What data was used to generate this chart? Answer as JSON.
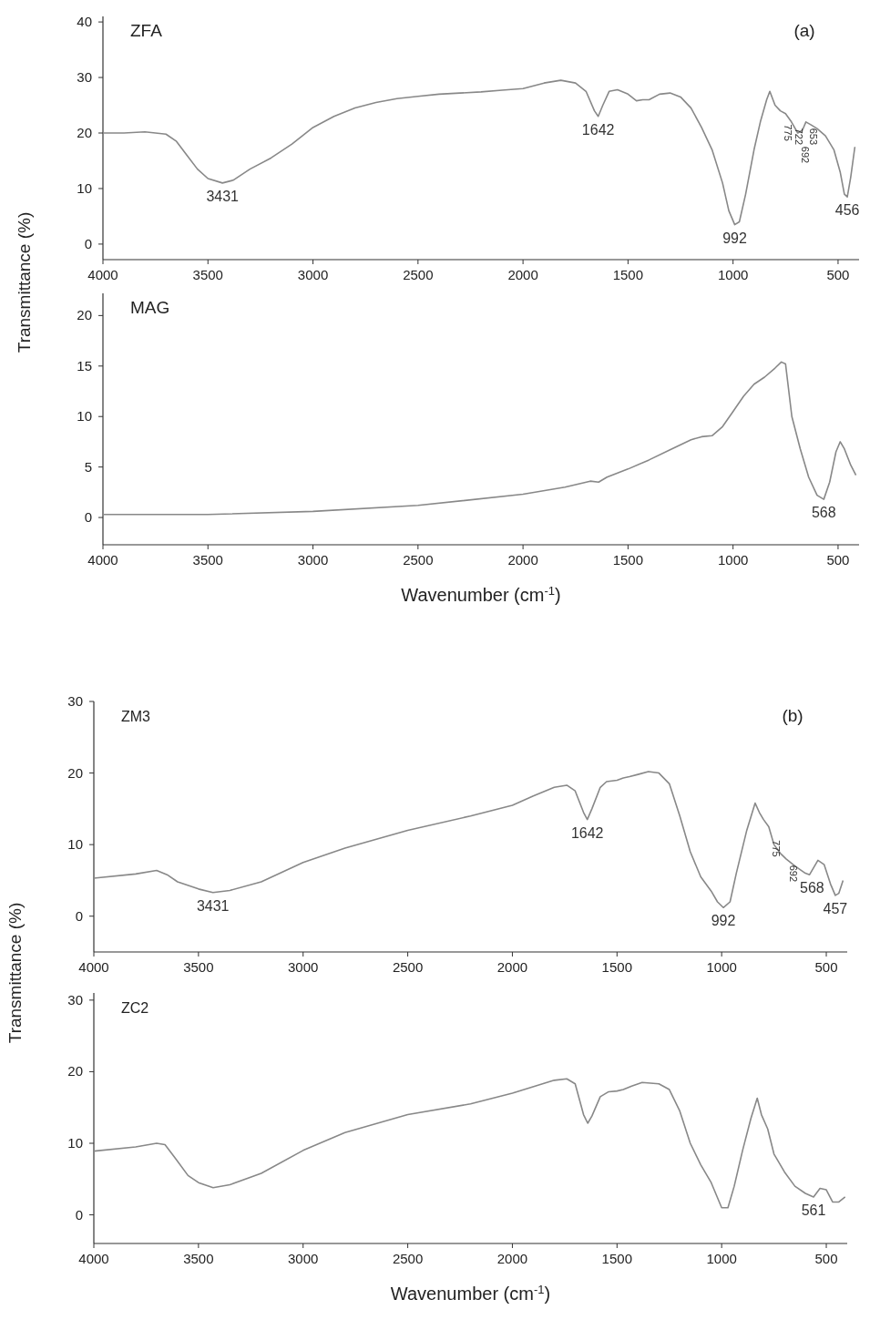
{
  "chart_data": [
    {
      "type": "line",
      "ylabel": "Transmittance (%)",
      "xlim": [
        4000,
        400
      ],
      "ylim": [
        -2.8,
        41
      ],
      "xticks": [
        4000,
        3500,
        3000,
        2500,
        2000,
        1500,
        1000,
        500
      ],
      "yticks": [
        0,
        10,
        20,
        30,
        40
      ],
      "grid": false,
      "annotations": [
        "ZFA",
        "(a)",
        {
          "text": "3431",
          "x": 3431,
          "y": 11
        },
        {
          "text": "1642",
          "x": 1642,
          "y": 23
        },
        {
          "text": "992",
          "x": 992,
          "y": 3.5
        },
        {
          "text": "775",
          "x": 775,
          "y": 24
        },
        {
          "text": "722",
          "x": 722,
          "y": 22
        },
        {
          "text": "692",
          "x": 692,
          "y": 20
        },
        {
          "text": "653",
          "x": 653,
          "y": 22
        },
        {
          "text": "456",
          "x": 456,
          "y": 8.5
        }
      ],
      "series": [
        {
          "color": "#888888",
          "x": [
            4000,
            3900,
            3800,
            3700,
            3650,
            3600,
            3550,
            3500,
            3431,
            3380,
            3300,
            3200,
            3100,
            3000,
            2900,
            2800,
            2700,
            2600,
            2500,
            2400,
            2300,
            2200,
            2100,
            2000,
            1900,
            1820,
            1750,
            1700,
            1660,
            1642,
            1620,
            1590,
            1550,
            1500,
            1460,
            1430,
            1400,
            1350,
            1300,
            1250,
            1200,
            1150,
            1100,
            1050,
            1020,
            992,
            970,
            940,
            900,
            870,
            840,
            825,
            800,
            775,
            750,
            722,
            692,
            670,
            653,
            630,
            600,
            560,
            520,
            490,
            470,
            456,
            440,
            420
          ],
          "values": [
            20,
            20,
            20.2,
            19.8,
            18.5,
            16,
            13.5,
            11.8,
            11,
            11.5,
            13.5,
            15.5,
            18,
            21,
            23,
            24.5,
            25.5,
            26.2,
            26.6,
            27,
            27.2,
            27.4,
            27.7,
            28,
            29,
            29.5,
            29,
            27.5,
            24,
            23,
            25,
            27.5,
            27.8,
            27,
            25.8,
            26,
            26,
            27,
            27.2,
            26.5,
            24.5,
            21,
            17,
            11,
            6,
            3.5,
            4,
            9,
            17,
            22,
            26,
            27.5,
            25,
            24,
            23.5,
            22,
            20,
            20.5,
            22,
            21.5,
            20.8,
            19.5,
            17,
            13,
            9,
            8.5,
            12,
            17.5
          ]
        }
      ]
    },
    {
      "type": "line",
      "xlabel": "Wavenumber (cm$^{-1}$)",
      "xlim": [
        4000,
        400
      ],
      "ylim": [
        -2.7,
        22.2
      ],
      "xticks": [
        4000,
        3500,
        3000,
        2500,
        2000,
        1500,
        1000,
        500
      ],
      "yticks": [
        0,
        5,
        10,
        15,
        20
      ],
      "grid": false,
      "annotations": [
        "MAG",
        {
          "text": "568",
          "x": 568,
          "y": 1.8
        }
      ],
      "series": [
        {
          "color": "#888888",
          "x": [
            4000,
            3500,
            3000,
            2500,
            2000,
            1800,
            1680,
            1640,
            1600,
            1500,
            1400,
            1300,
            1200,
            1150,
            1100,
            1050,
            1000,
            950,
            900,
            850,
            800,
            770,
            750,
            720,
            680,
            640,
            600,
            568,
            540,
            510,
            490,
            470,
            440,
            415
          ],
          "values": [
            0.3,
            0.3,
            0.6,
            1.2,
            2.3,
            3,
            3.6,
            3.5,
            4,
            4.8,
            5.7,
            6.7,
            7.7,
            8,
            8.1,
            9,
            10.5,
            12,
            13.2,
            13.9,
            14.8,
            15.4,
            15.2,
            10,
            6.8,
            4,
            2.2,
            1.8,
            3.5,
            6.5,
            7.5,
            6.8,
            5.2,
            4.2
          ]
        }
      ]
    },
    {
      "type": "line",
      "ylabel": "Transmittance (%)",
      "xlim": [
        4000,
        400
      ],
      "ylim": [
        -5,
        30
      ],
      "xticks": [
        4000,
        3500,
        3000,
        2500,
        2000,
        1500,
        1000,
        500
      ],
      "yticks": [
        0,
        10,
        20,
        30
      ],
      "grid": false,
      "annotations": [
        "ZM3",
        "(b)",
        {
          "text": "3431",
          "x": 3431,
          "y": 3.3
        },
        {
          "text": "1642",
          "x": 1642,
          "y": 13.5
        },
        {
          "text": "992",
          "x": 992,
          "y": 1.2
        },
        {
          "text": "775",
          "x": 775,
          "y": 12.5
        },
        {
          "text": "692",
          "x": 692,
          "y": 8
        },
        {
          "text": "568",
          "x": 568,
          "y": 5.8
        },
        {
          "text": "457",
          "x": 457,
          "y": 2.9
        }
      ],
      "series": [
        {
          "color": "#888888",
          "x": [
            4000,
            3800,
            3700,
            3650,
            3600,
            3500,
            3431,
            3350,
            3200,
            3000,
            2800,
            2500,
            2200,
            2000,
            1900,
            1800,
            1740,
            1700,
            1660,
            1642,
            1620,
            1580,
            1550,
            1500,
            1470,
            1440,
            1400,
            1350,
            1300,
            1250,
            1200,
            1150,
            1100,
            1050,
            1020,
            992,
            960,
            930,
            880,
            840,
            820,
            800,
            775,
            750,
            720,
            692,
            650,
            600,
            580,
            540,
            510,
            480,
            457,
            440,
            420
          ],
          "values": [
            5.3,
            5.9,
            6.4,
            5.8,
            4.8,
            3.8,
            3.3,
            3.6,
            4.8,
            7.5,
            9.5,
            12,
            14,
            15.5,
            16.8,
            18,
            18.3,
            17.5,
            14.5,
            13.5,
            15,
            18,
            18.8,
            19,
            19.3,
            19.5,
            19.8,
            20.2,
            20,
            18.5,
            14,
            9,
            5.5,
            3.5,
            2,
            1.2,
            2,
            6,
            12,
            15.8,
            14.5,
            13.5,
            12.5,
            10,
            8.8,
            8,
            7,
            6,
            5.8,
            7.8,
            7.2,
            4.5,
            2.9,
            3.2,
            5
          ]
        }
      ]
    },
    {
      "type": "line",
      "xlabel": "Wavenumber (cm$^{-1}$)",
      "xlim": [
        4000,
        400
      ],
      "ylim": [
        -4,
        31
      ],
      "xticks": [
        4000,
        3500,
        3000,
        2500,
        2000,
        1500,
        1000,
        500
      ],
      "yticks": [
        0,
        10,
        20,
        30
      ],
      "grid": false,
      "annotations": [
        "ZC2",
        {
          "text": "561",
          "x": 561,
          "y": 2.5
        }
      ],
      "series": [
        {
          "color": "#888888",
          "x": [
            4000,
            3800,
            3700,
            3660,
            3600,
            3550,
            3500,
            3430,
            3350,
            3200,
            3000,
            2800,
            2500,
            2200,
            2000,
            1800,
            1740,
            1700,
            1660,
            1640,
            1620,
            1580,
            1540,
            1500,
            1470,
            1430,
            1380,
            1300,
            1250,
            1200,
            1150,
            1100,
            1050,
            1000,
            970,
            940,
            900,
            860,
            830,
            810,
            780,
            750,
            700,
            650,
            600,
            561,
            530,
            500,
            470,
            440,
            410
          ],
          "values": [
            8.9,
            9.5,
            10,
            9.8,
            7.5,
            5.5,
            4.5,
            3.8,
            4.2,
            5.8,
            9,
            11.5,
            14,
            15.5,
            17,
            18.8,
            19,
            18.3,
            14,
            12.8,
            13.8,
            16.5,
            17.2,
            17.3,
            17.5,
            18,
            18.5,
            18.3,
            17.5,
            14.5,
            10,
            7,
            4.5,
            1,
            1,
            4,
            9,
            13.5,
            16.3,
            14,
            12,
            8.5,
            6,
            4,
            3,
            2.5,
            3.7,
            3.5,
            1.8,
            1.8,
            2.5
          ]
        }
      ]
    }
  ]
}
